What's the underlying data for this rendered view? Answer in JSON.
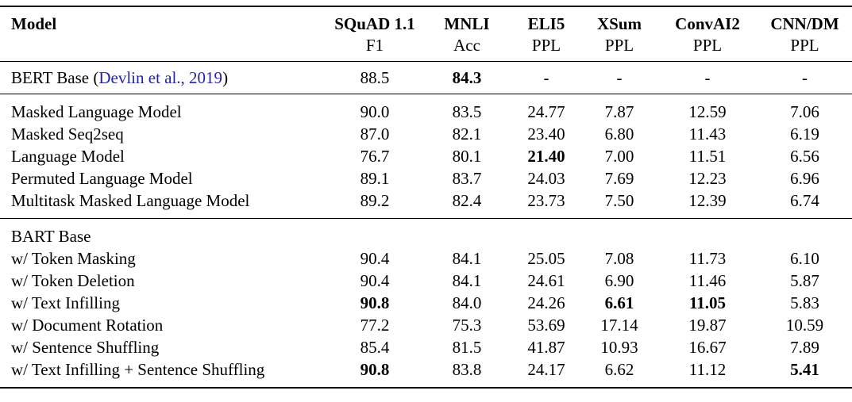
{
  "colors": {
    "text": "#000000",
    "link": "#2222aa",
    "rule": "#000000",
    "background": "#ffffff"
  },
  "table": {
    "columns": [
      {
        "id": "model",
        "label": "Model",
        "sub": ""
      },
      {
        "id": "squad",
        "label": "SQuAD 1.1",
        "sub": "F1"
      },
      {
        "id": "mnli",
        "label": "MNLI",
        "sub": "Acc"
      },
      {
        "id": "eli5",
        "label": "ELI5",
        "sub": "PPL"
      },
      {
        "id": "xsum",
        "label": "XSum",
        "sub": "PPL"
      },
      {
        "id": "convai2",
        "label": "ConvAI2",
        "sub": "PPL"
      },
      {
        "id": "cnndm",
        "label": "CNN/DM",
        "sub": "PPL"
      }
    ],
    "sections": [
      {
        "name": "bert-baseline",
        "rows": [
          {
            "model": {
              "prefix": "BERT Base (",
              "link": "Devlin et al., 2019",
              "suffix": ")"
            },
            "values": [
              "88.5",
              "84.3",
              "-",
              "-",
              "-",
              "-"
            ],
            "bold": [
              false,
              true,
              false,
              false,
              false,
              false
            ]
          }
        ]
      },
      {
        "name": "pretraining-objectives",
        "rows": [
          {
            "model": {
              "prefix": "Masked Language Model"
            },
            "values": [
              "90.0",
              "83.5",
              "24.77",
              "7.87",
              "12.59",
              "7.06"
            ],
            "bold": [
              false,
              false,
              false,
              false,
              false,
              false
            ]
          },
          {
            "model": {
              "prefix": "Masked Seq2seq"
            },
            "values": [
              "87.0",
              "82.1",
              "23.40",
              "6.80",
              "11.43",
              "6.19"
            ],
            "bold": [
              false,
              false,
              false,
              false,
              false,
              false
            ]
          },
          {
            "model": {
              "prefix": "Language Model"
            },
            "values": [
              "76.7",
              "80.1",
              "21.40",
              "7.00",
              "11.51",
              "6.56"
            ],
            "bold": [
              false,
              false,
              true,
              false,
              false,
              false
            ]
          },
          {
            "model": {
              "prefix": "Permuted Language Model"
            },
            "values": [
              "89.1",
              "83.7",
              "24.03",
              "7.69",
              "12.23",
              "6.96"
            ],
            "bold": [
              false,
              false,
              false,
              false,
              false,
              false
            ]
          },
          {
            "model": {
              "prefix": "Multitask Masked Language Model"
            },
            "values": [
              "89.2",
              "82.4",
              "23.73",
              "7.50",
              "12.39",
              "6.74"
            ],
            "bold": [
              false,
              false,
              false,
              false,
              false,
              false
            ]
          }
        ]
      },
      {
        "name": "bart-variants",
        "rows": [
          {
            "model": {
              "prefix": "BART Base"
            },
            "values": [
              "",
              "",
              "",
              "",
              "",
              ""
            ],
            "bold": [
              false,
              false,
              false,
              false,
              false,
              false
            ]
          },
          {
            "model": {
              "prefix": "w/ Token Masking"
            },
            "values": [
              "90.4",
              "84.1",
              "25.05",
              "7.08",
              "11.73",
              "6.10"
            ],
            "bold": [
              false,
              false,
              false,
              false,
              false,
              false
            ]
          },
          {
            "model": {
              "prefix": "w/ Token Deletion"
            },
            "values": [
              "90.4",
              "84.1",
              "24.61",
              "6.90",
              "11.46",
              "5.87"
            ],
            "bold": [
              false,
              false,
              false,
              false,
              false,
              false
            ]
          },
          {
            "model": {
              "prefix": "w/ Text Infilling"
            },
            "values": [
              "90.8",
              "84.0",
              "24.26",
              "6.61",
              "11.05",
              "5.83"
            ],
            "bold": [
              true,
              false,
              false,
              true,
              true,
              false
            ]
          },
          {
            "model": {
              "prefix": "w/ Document Rotation"
            },
            "values": [
              "77.2",
              "75.3",
              "53.69",
              "17.14",
              "19.87",
              "10.59"
            ],
            "bold": [
              false,
              false,
              false,
              false,
              false,
              false
            ]
          },
          {
            "model": {
              "prefix": "w/ Sentence Shuffling"
            },
            "values": [
              "85.4",
              "81.5",
              "41.87",
              "10.93",
              "16.67",
              "7.89"
            ],
            "bold": [
              false,
              false,
              false,
              false,
              false,
              false
            ]
          },
          {
            "model": {
              "prefix": "w/ Text Infilling + Sentence Shuffling"
            },
            "values": [
              "90.8",
              "83.8",
              "24.17",
              "6.62",
              "11.12",
              "5.41"
            ],
            "bold": [
              true,
              false,
              false,
              false,
              false,
              true
            ]
          }
        ]
      }
    ]
  }
}
